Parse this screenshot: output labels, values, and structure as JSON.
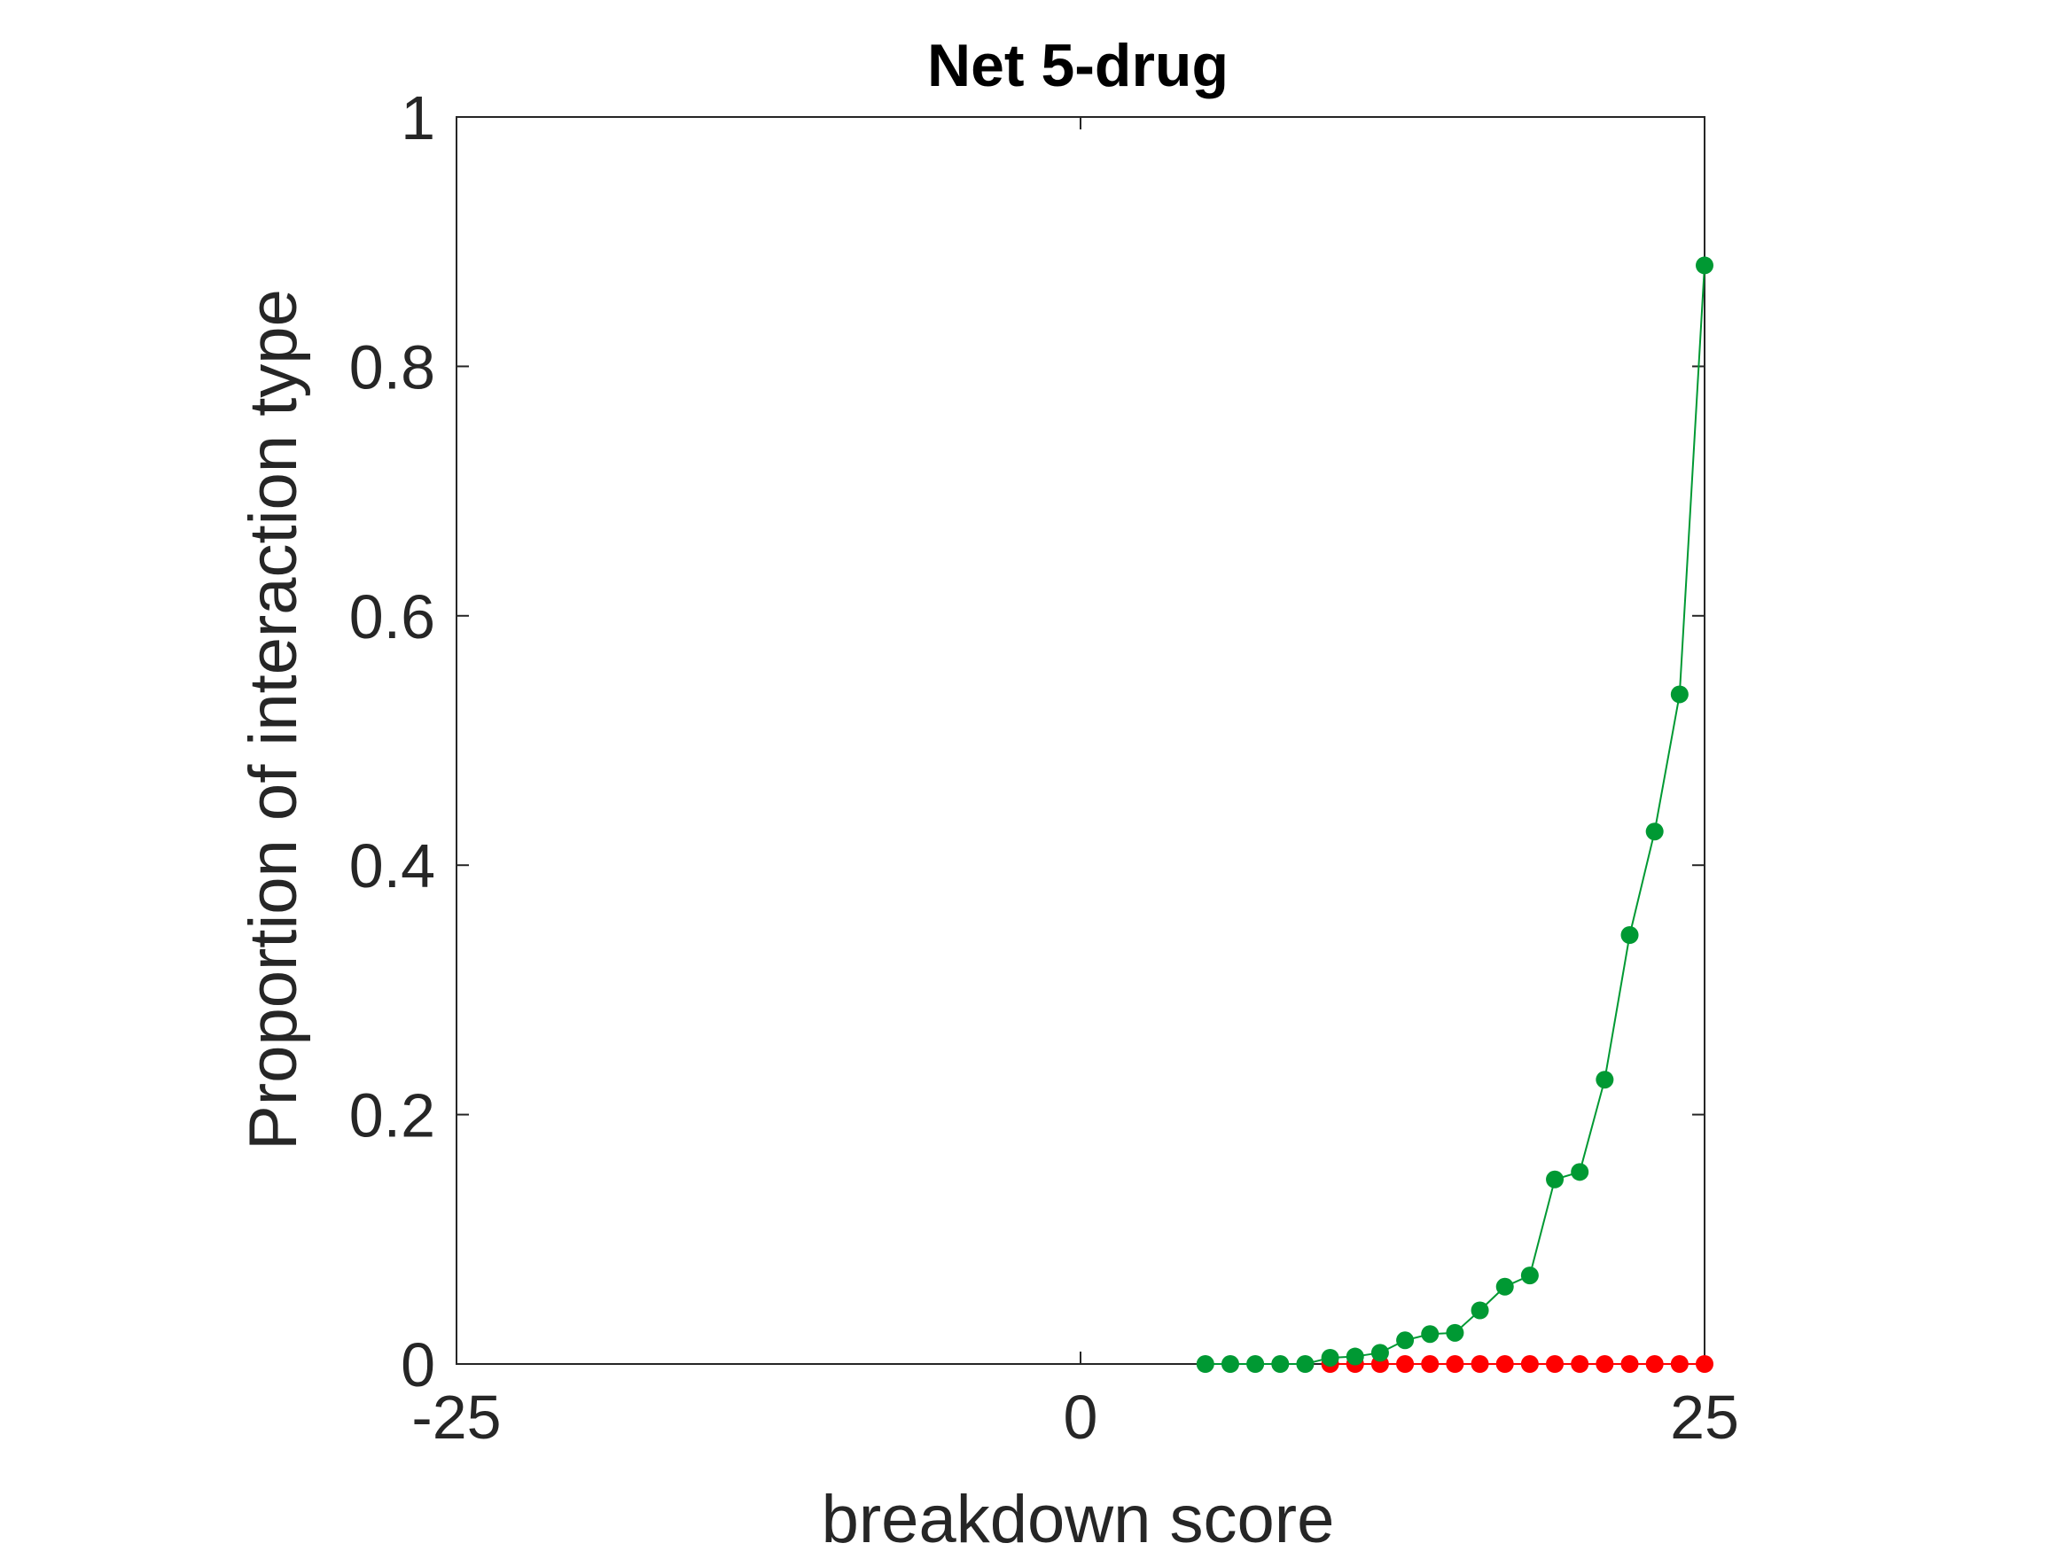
{
  "chart_data": {
    "type": "line",
    "title": "Net 5-drug",
    "xlabel": "breakdown score",
    "ylabel": "Proportion of interaction type",
    "xlim": [
      -25,
      25
    ],
    "ylim": [
      0,
      1
    ],
    "xticks": [
      -25,
      0,
      25
    ],
    "xtick_labels": [
      "-25",
      "0",
      "25"
    ],
    "yticks": [
      0,
      0.2,
      0.4,
      0.6,
      0.8,
      1
    ],
    "ytick_labels": [
      "0",
      "0.2",
      "0.4",
      "0.6",
      "0.8",
      "1"
    ],
    "grid": false,
    "series": [
      {
        "color": "#ff0000",
        "marker": "circle",
        "x": [
          10,
          11,
          12,
          13,
          14,
          15,
          16,
          17,
          18,
          19,
          20,
          21,
          22,
          23,
          24,
          25
        ],
        "y": [
          0,
          0,
          0,
          0,
          0,
          0,
          0,
          0,
          0,
          0,
          0,
          0,
          0,
          0,
          0,
          0
        ]
      },
      {
        "color": "#009933",
        "marker": "circle",
        "x": [
          5,
          6,
          7,
          8,
          9,
          10,
          11,
          12,
          13,
          14,
          15,
          16,
          17,
          18,
          19,
          20,
          21,
          22,
          23,
          24,
          25
        ],
        "y": [
          0,
          0,
          0,
          0,
          0,
          0.005,
          0.006,
          0.009,
          0.019,
          0.024,
          0.025,
          0.043,
          0.062,
          0.071,
          0.148,
          0.154,
          0.228,
          0.344,
          0.427,
          0.537,
          0.881
        ]
      }
    ]
  }
}
